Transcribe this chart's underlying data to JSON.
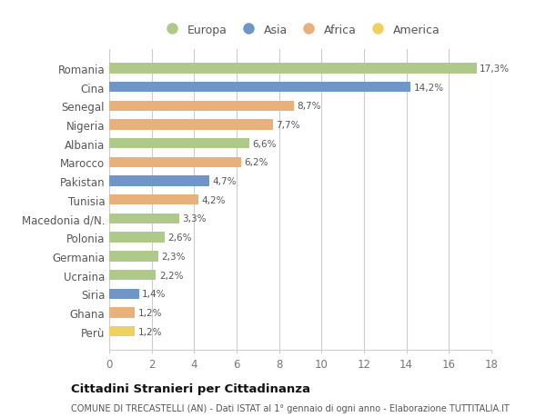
{
  "countries": [
    "Romania",
    "Cina",
    "Senegal",
    "Nigeria",
    "Albania",
    "Marocco",
    "Pakistan",
    "Tunisia",
    "Macedonia d/N.",
    "Polonia",
    "Germania",
    "Ucraina",
    "Siria",
    "Ghana",
    "Perù"
  ],
  "values": [
    17.3,
    14.2,
    8.7,
    7.7,
    6.6,
    6.2,
    4.7,
    4.2,
    3.3,
    2.6,
    2.3,
    2.2,
    1.4,
    1.2,
    1.2
  ],
  "labels": [
    "17,3%",
    "14,2%",
    "8,7%",
    "7,7%",
    "6,6%",
    "6,2%",
    "4,7%",
    "4,2%",
    "3,3%",
    "2,6%",
    "2,3%",
    "2,2%",
    "1,4%",
    "1,2%",
    "1,2%"
  ],
  "continents": [
    "Europa",
    "Asia",
    "Africa",
    "Africa",
    "Europa",
    "Africa",
    "Asia",
    "Africa",
    "Europa",
    "Europa",
    "Europa",
    "Europa",
    "Asia",
    "Africa",
    "America"
  ],
  "continent_colors": {
    "Europa": "#aec98a",
    "Asia": "#7096c8",
    "Africa": "#e8b07a",
    "America": "#f0d060"
  },
  "legend_order": [
    "Europa",
    "Asia",
    "Africa",
    "America"
  ],
  "title": "Cittadini Stranieri per Cittadinanza",
  "subtitle": "COMUNE DI TRECASTELLI (AN) - Dati ISTAT al 1° gennaio di ogni anno - Elaborazione TUTTITALIA.IT",
  "xlim": [
    0,
    18
  ],
  "xticks": [
    0,
    2,
    4,
    6,
    8,
    10,
    12,
    14,
    16,
    18
  ],
  "background_color": "#ffffff",
  "grid_color": "#cccccc"
}
